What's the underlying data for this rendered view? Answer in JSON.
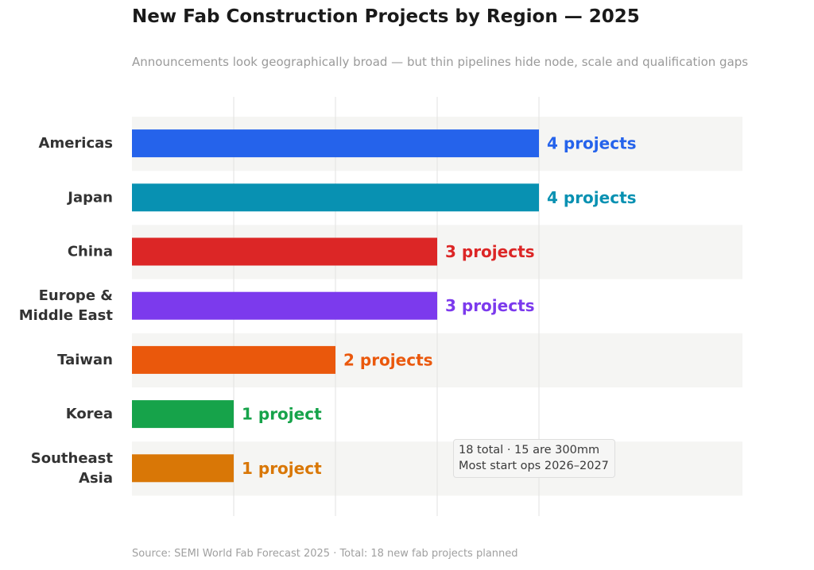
{
  "title": "New Fab Construction Projects by Region — 2025",
  "subtitle": "Announcements look geographically broad — but thin pipelines hide node, scale and qualification gaps",
  "footer": "Source: SEMI World Fab Forecast 2025  ·  Total: 18 new fab projects planned",
  "stats_box": {
    "line1": "18 total  ·  15 are 300mm",
    "line2": "Most start ops 2026–2027"
  },
  "chart_data": {
    "type": "bar",
    "orientation": "horizontal",
    "categories": [
      [
        "Americas"
      ],
      [
        "Japan"
      ],
      [
        "China"
      ],
      [
        "Europe &",
        "Middle East"
      ],
      [
        "Taiwan"
      ],
      [
        "Korea"
      ],
      [
        "Southeast",
        "Asia"
      ]
    ],
    "values": [
      4,
      4,
      3,
      3,
      2,
      1,
      1
    ],
    "value_labels": [
      "4 projects",
      "4 projects",
      "3 projects",
      "3 projects",
      "2 projects",
      "1 project",
      "1 project"
    ],
    "colors": [
      "#2563eb",
      "#0891b2",
      "#dc2626",
      "#7c3aed",
      "#ea580c",
      "#16a34a",
      "#d97706"
    ],
    "xlim": [
      0,
      6
    ],
    "x_gridlines": [
      1,
      2,
      3,
      4
    ],
    "alternating_row_background": "#f5f5f3"
  }
}
